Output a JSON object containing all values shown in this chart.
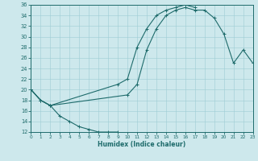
{
  "xlabel": "Humidex (Indice chaleur)",
  "xlim": [
    0,
    23
  ],
  "ylim": [
    12,
    36
  ],
  "yticks": [
    12,
    14,
    16,
    18,
    20,
    22,
    24,
    26,
    28,
    30,
    32,
    34,
    36
  ],
  "xticks": [
    0,
    1,
    2,
    3,
    4,
    5,
    6,
    7,
    8,
    9,
    10,
    11,
    12,
    13,
    14,
    15,
    16,
    17,
    18,
    19,
    20,
    21,
    22,
    23
  ],
  "bg_color": "#cde8ec",
  "grid_color": "#9ecdd4",
  "line_color": "#1e6b6b",
  "curve_a_x": [
    0,
    1,
    2,
    3,
    4,
    5,
    6,
    7,
    8,
    9
  ],
  "curve_a_y": [
    20,
    18,
    17,
    15,
    14,
    13,
    12.5,
    12,
    12,
    12
  ],
  "curve_b_x": [
    0,
    1,
    2,
    9,
    10,
    11,
    12,
    13,
    14,
    15,
    16,
    17
  ],
  "curve_b_y": [
    20,
    18,
    17,
    21,
    22,
    28,
    31.5,
    34,
    35,
    35.5,
    36,
    35.5
  ],
  "curve_c_x": [
    0,
    1,
    2,
    10,
    11,
    12,
    13,
    14,
    15,
    16,
    17,
    18,
    19,
    20,
    21,
    22,
    23
  ],
  "curve_c_y": [
    20,
    18,
    17,
    19,
    21,
    27.5,
    31.5,
    34,
    35,
    35.5,
    35,
    35,
    33.5,
    30.5,
    25,
    27.5,
    25
  ]
}
